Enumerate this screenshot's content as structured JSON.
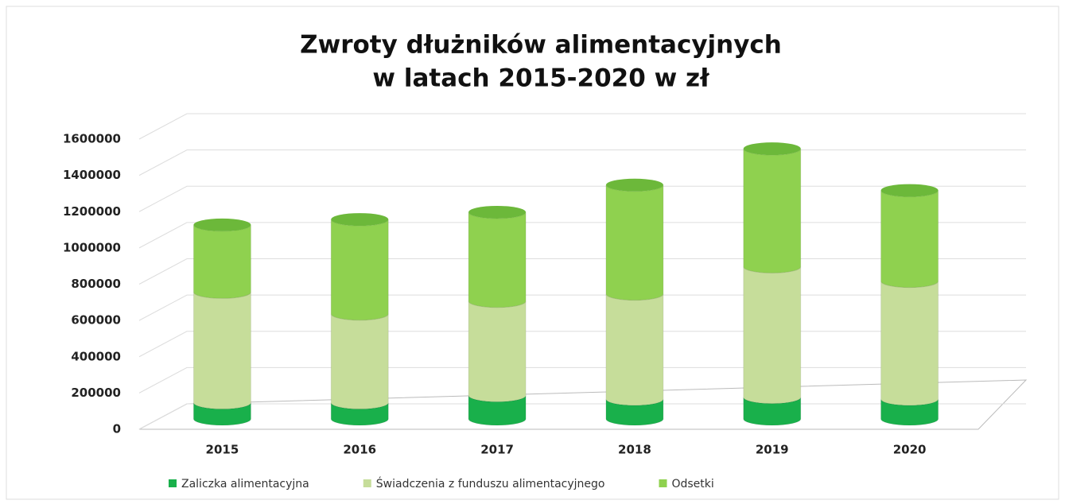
{
  "chart_data": {
    "type": "bar3d-stacked",
    "title": [
      "Zwroty dłużników alimentacyjnych",
      "w latach 2015-2020 w zł"
    ],
    "categories": [
      "2015",
      "2016",
      "2017",
      "2018",
      "2019",
      "2020"
    ],
    "series": [
      {
        "name": "Zaliczka alimentacyjna",
        "color": "#19b04b",
        "values": [
          90000,
          90000,
          130000,
          110000,
          120000,
          110000
        ]
      },
      {
        "name": "Świadczenia z funduszu alimentacyjnego",
        "color": "#c6dd9a",
        "values": [
          610000,
          490000,
          520000,
          580000,
          720000,
          650000
        ]
      },
      {
        "name": "Odsetki",
        "color": "#8fd14f",
        "values": [
          370000,
          520000,
          490000,
          600000,
          650000,
          500000
        ]
      }
    ],
    "ylim": [
      0,
      1600000
    ],
    "yticks": [
      0,
      200000,
      400000,
      600000,
      800000,
      1000000,
      1200000,
      1400000,
      1600000
    ],
    "grid": true,
    "legend": "bottom"
  }
}
